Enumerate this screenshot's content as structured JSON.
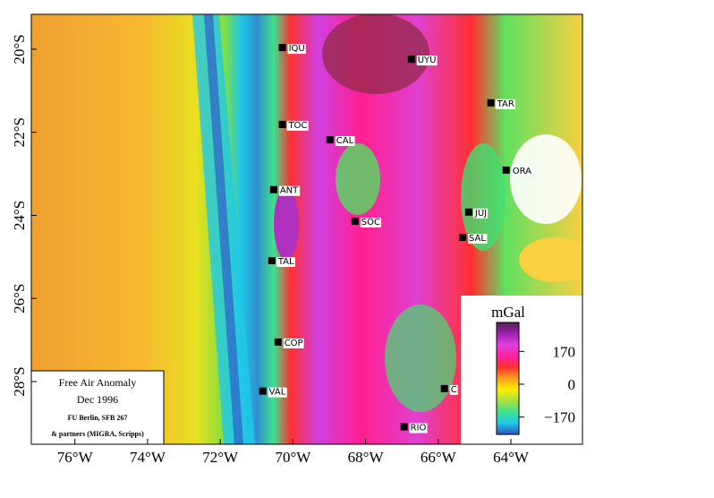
{
  "map": {
    "xlim": [
      -77.2,
      -62.03
    ],
    "ylim": [
      -29.51,
      -19.16
    ],
    "xticks": [
      {
        "value": -76,
        "label": "76°W"
      },
      {
        "value": -74,
        "label": "74°W"
      },
      {
        "value": -72,
        "label": "72°W"
      },
      {
        "value": -70,
        "label": "70°W"
      },
      {
        "value": -68,
        "label": "68°W"
      },
      {
        "value": -66,
        "label": "66°W"
      },
      {
        "value": -64,
        "label": "64°W"
      }
    ],
    "yticks": [
      {
        "value": -20,
        "label": "20°S"
      },
      {
        "value": -22,
        "label": "22°S"
      },
      {
        "value": -24,
        "label": "24°S"
      },
      {
        "value": -26,
        "label": "26°S"
      },
      {
        "value": -28,
        "label": "28°S"
      }
    ],
    "cities": [
      {
        "name": "IQU",
        "lon": -70.29,
        "lat": -19.96
      },
      {
        "name": "UYU",
        "lon": -66.74,
        "lat": -20.24
      },
      {
        "name": "TAR",
        "lon": -64.55,
        "lat": -21.29
      },
      {
        "name": "TOC",
        "lon": -70.29,
        "lat": -21.81
      },
      {
        "name": "CAL",
        "lon": -68.98,
        "lat": -22.18
      },
      {
        "name": "ORA",
        "lon": -64.13,
        "lat": -22.91
      },
      {
        "name": "ANT",
        "lon": -70.53,
        "lat": -23.38
      },
      {
        "name": "JUJ",
        "lon": -65.16,
        "lat": -23.92
      },
      {
        "name": "SOC",
        "lon": -68.29,
        "lat": -24.14
      },
      {
        "name": "SAL",
        "lon": -65.33,
        "lat": -24.53
      },
      {
        "name": "TAL",
        "lon": -70.58,
        "lat": -25.09
      },
      {
        "name": "COP",
        "lon": -70.41,
        "lat": -27.05
      },
      {
        "name": "VAL",
        "lon": -70.83,
        "lat": -28.23
      },
      {
        "name": "C",
        "lon": -65.83,
        "lat": -28.17
      },
      {
        "name": "RIO",
        "lon": -66.94,
        "lat": -29.09
      }
    ]
  },
  "legend": {
    "title": "Free Air Anomaly",
    "date": "Dec 1996",
    "credit": "FU Berlin, SFB 267",
    "partners": "& partners (MIGRA, Scripps)"
  },
  "colorbar": {
    "title": "mGal",
    "lim": [
      -260,
      320
    ],
    "ticks": [
      170,
      0,
      {
        "value": -170,
        "label": "−170"
      }
    ],
    "colors": [
      "#3050c0",
      "#20c8e8",
      "#40e090",
      "#a8e040",
      "#f8f000",
      "#ffa020",
      "#ff3030",
      "#ff20a0",
      "#e040e0",
      "#a020b0",
      "#502050"
    ]
  }
}
